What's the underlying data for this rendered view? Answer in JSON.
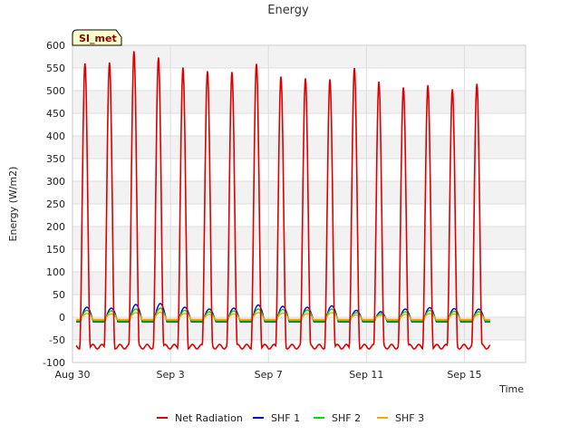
{
  "chart_data": {
    "type": "line",
    "title": "Energy",
    "xlabel": "Time",
    "ylabel": "Energy (W/m2)",
    "ylim": [
      -100,
      600
    ],
    "xlim": [
      0,
      18.5
    ],
    "yticks": [
      -100,
      -50,
      0,
      50,
      100,
      150,
      200,
      250,
      300,
      350,
      400,
      450,
      500,
      550,
      600
    ],
    "xticks": [
      {
        "day": 0,
        "label": "Aug 30"
      },
      {
        "day": 4,
        "label": "Sep 3"
      },
      {
        "day": 8,
        "label": "Sep 7"
      },
      {
        "day": 12,
        "label": "Sep 11"
      },
      {
        "day": 16,
        "label": "Sep 15"
      }
    ],
    "badge": "SI_met",
    "legend_position": "bottom",
    "grid": true,
    "series": [
      {
        "name": "Net Radiation",
        "color": "#dd0000",
        "kind": "net",
        "day_peaks": [
          560,
          562,
          587,
          573,
          551,
          543,
          541,
          559,
          531,
          527,
          525,
          550,
          520,
          507,
          512,
          503,
          515
        ],
        "night_value": -65
      },
      {
        "name": "SHF 1",
        "color": "#0000cc",
        "kind": "shf",
        "day_peaks": [
          22,
          20,
          28,
          30,
          22,
          18,
          20,
          27,
          24,
          22,
          25,
          15,
          12,
          18,
          21,
          19,
          18
        ],
        "night_value": -10
      },
      {
        "name": "SHF 2",
        "color": "#00dd00",
        "kind": "shf",
        "day_peaks": [
          15,
          14,
          18,
          20,
          15,
          12,
          14,
          18,
          17,
          16,
          18,
          10,
          8,
          12,
          15,
          13,
          12
        ],
        "night_value": -8
      },
      {
        "name": "SHF 3",
        "color": "#ffa500",
        "kind": "shf",
        "day_peaks": [
          8,
          7,
          10,
          11,
          8,
          6,
          7,
          10,
          9,
          8,
          10,
          5,
          4,
          6,
          8,
          7,
          6
        ],
        "night_value": -5
      }
    ]
  }
}
